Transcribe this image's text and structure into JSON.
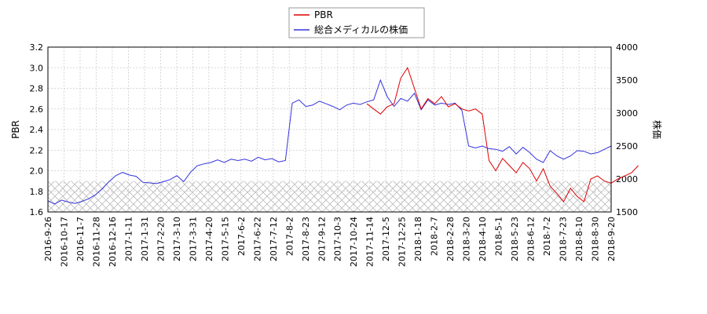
{
  "chart_data": {
    "type": "line",
    "legend": {
      "position": "top-center",
      "entries": [
        {
          "label": "PBR",
          "color": "#dd0000"
        },
        {
          "label": "総合メディカルの株価",
          "color": "#3333dd"
        }
      ]
    },
    "ylabel_left": "PBR",
    "ylabel_right": "株価",
    "ylim_left": [
      1.6,
      3.2
    ],
    "ylim_right": [
      1500,
      4000
    ],
    "yticks_left": [
      "1.6",
      "1.8",
      "2.0",
      "2.2",
      "2.4",
      "2.6",
      "2.8",
      "3.0",
      "3.2"
    ],
    "yticks_right": [
      "1500",
      "2000",
      "2500",
      "3000",
      "3500",
      "4000"
    ],
    "grid": true,
    "hatch_band": {
      "axis": "left",
      "from": 1.6,
      "to": 1.9
    },
    "x_ticks": [
      "2016-9-26",
      "2016-10-17",
      "2016-11-7",
      "2016-11-28",
      "2016-12-16",
      "2017-1-11",
      "2017-1-31",
      "2017-2-20",
      "2017-3-10",
      "2017-3-31",
      "2017-4-20",
      "2017-5-15",
      "2017-6-2",
      "2017-6-22",
      "2017-7-12",
      "2017-8-2",
      "2017-8-23",
      "2017-9-12",
      "2017-10-3",
      "2017-10-24",
      "2017-11-14",
      "2017-12-5",
      "2017-12-25",
      "2018-1-18",
      "2018-2-7",
      "2018-2-28",
      "2018-3-20",
      "2018-4-10",
      "2018-5-1",
      "2018-5-23",
      "2018-6-12",
      "2018-7-2",
      "2018-7-23",
      "2018-8-10",
      "2018-8-30",
      "2018-9-20"
    ],
    "series": [
      {
        "name": "総合メディカルの株価",
        "axis": "right",
        "color": "#3333dd",
        "values": [
          1670,
          1620,
          1680,
          1650,
          1630,
          1660,
          1700,
          1760,
          1850,
          1960,
          2050,
          2100,
          2060,
          2040,
          1950,
          1940,
          1930,
          1960,
          1990,
          2050,
          1960,
          2100,
          2200,
          2230,
          2250,
          2290,
          2250,
          2300,
          2280,
          2300,
          2270,
          2330,
          2290,
          2310,
          2260,
          2280,
          3150,
          3200,
          3100,
          3120,
          3180,
          3140,
          3100,
          3050,
          3120,
          3150,
          3130,
          3170,
          3200,
          3500,
          3250,
          3100,
          3220,
          3180,
          3300,
          3050,
          3200,
          3120,
          3150,
          3130,
          3150,
          3040,
          2500,
          2470,
          2500,
          2460,
          2450,
          2420,
          2490,
          2380,
          2480,
          2400,
          2300,
          2250,
          2430,
          2350,
          2300,
          2350,
          2430,
          2420,
          2380,
          2400,
          2450,
          2500
        ]
      },
      {
        "name": "PBR",
        "axis": "left",
        "color": "#dd0000",
        "start_index": 47,
        "values": [
          2.65,
          2.6,
          2.55,
          2.62,
          2.65,
          2.9,
          3.0,
          2.8,
          2.6,
          2.7,
          2.65,
          2.72,
          2.62,
          2.65,
          2.6,
          2.58,
          2.6,
          2.55,
          2.1,
          2.0,
          2.12,
          2.05,
          1.98,
          2.08,
          2.02,
          1.9,
          2.02,
          1.85,
          1.78,
          1.7,
          1.83,
          1.75,
          1.7,
          1.92,
          1.95,
          1.9,
          1.88,
          1.92,
          1.95,
          1.98,
          2.05
        ]
      }
    ]
  }
}
